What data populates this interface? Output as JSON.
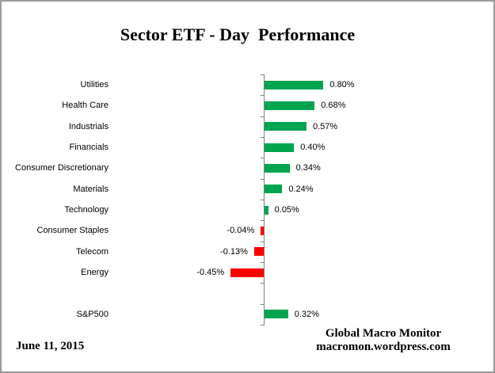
{
  "title": "Sector ETF - Day  Performance",
  "chart_data": {
    "type": "bar",
    "orientation": "horizontal",
    "title": "Sector ETF - Day  Performance",
    "categories": [
      "Utilities",
      "Health Care",
      "Industrials",
      "Financials",
      "Consumer Discretionary",
      "Materials",
      "Technology",
      "Consumer Staples",
      "Telecom",
      "Energy",
      "S&P500"
    ],
    "values": [
      0.8,
      0.68,
      0.57,
      0.4,
      0.34,
      0.24,
      0.05,
      -0.04,
      -0.13,
      -0.45,
      0.32
    ],
    "value_labels": [
      "0.80%",
      "0.68%",
      "0.57%",
      "0.40%",
      "0.34%",
      "0.24%",
      "0.05%",
      "-0.04%",
      "-0.13%",
      "-0.45%",
      "0.32%"
    ],
    "unit": "%",
    "blank_row_before": "S&P500",
    "grid": false,
    "legend": false,
    "positive_color": "#00A550",
    "negative_color": "#FF0000",
    "axis_color": "#808080"
  },
  "footer": {
    "date": "June 11, 2015",
    "source_line1": "Global Macro Monitor",
    "source_line2": "macromon.wordpress.com"
  },
  "frame": {
    "border_color": "#9B9B9B"
  }
}
